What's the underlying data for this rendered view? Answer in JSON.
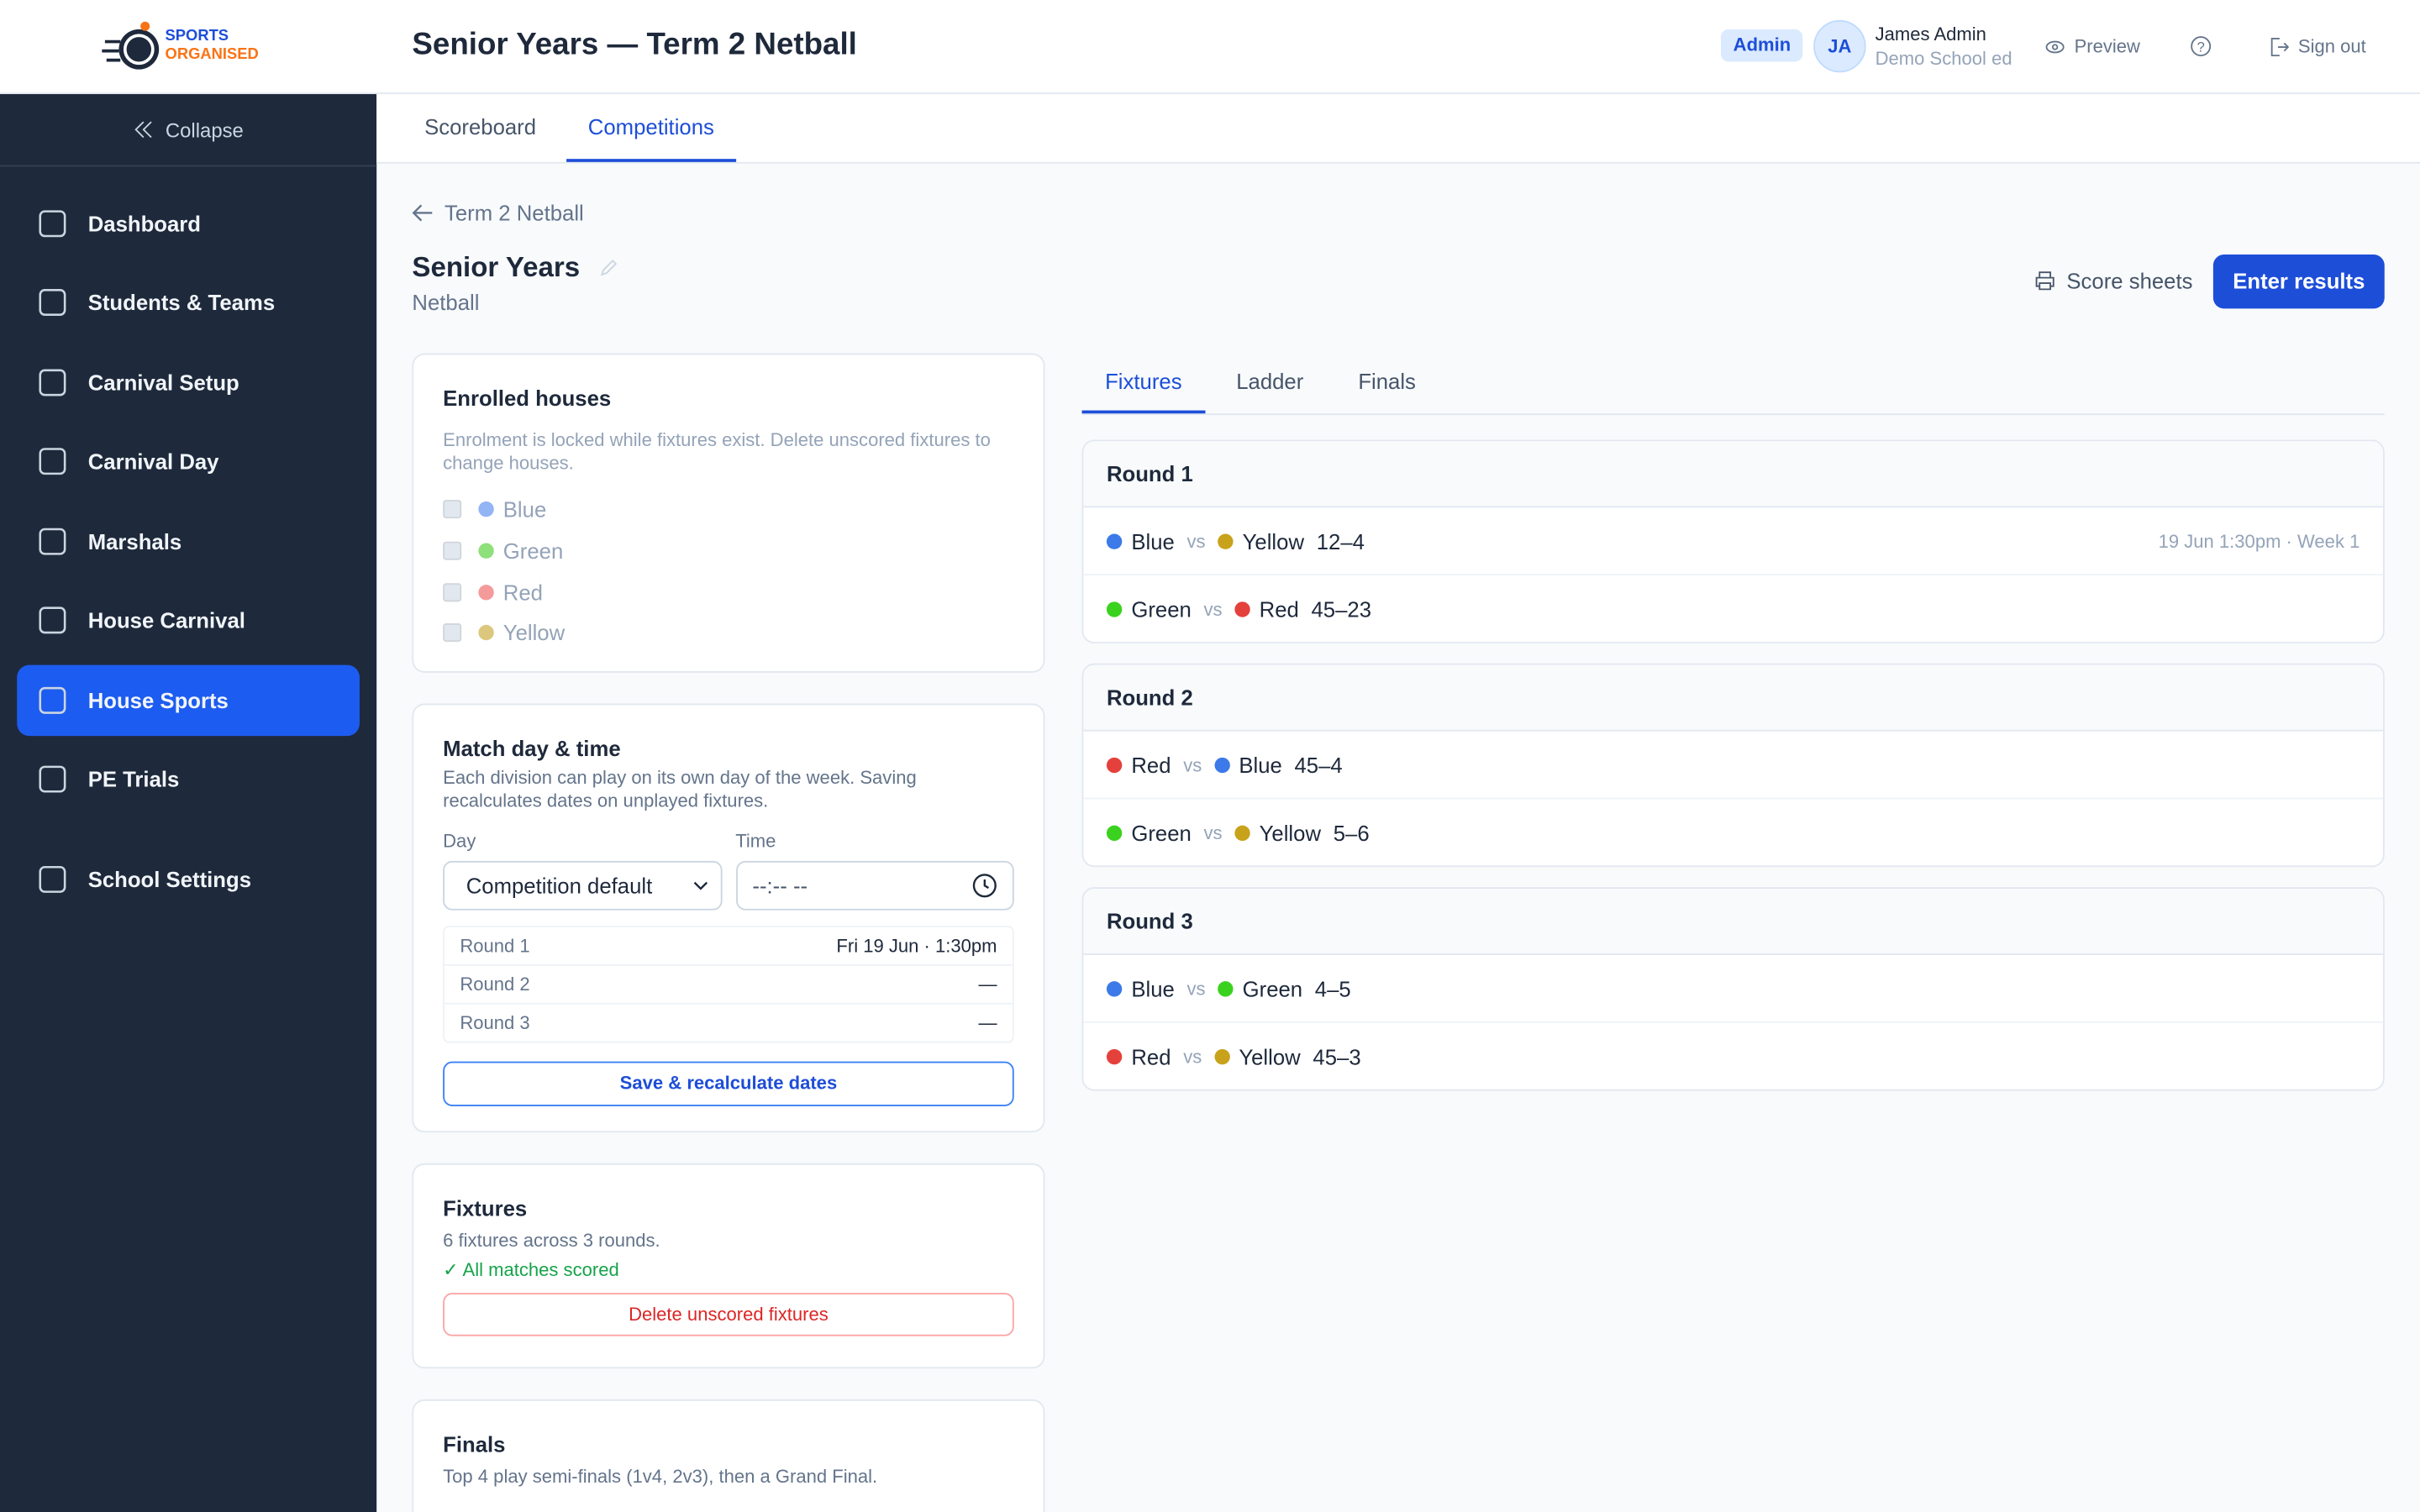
{
  "header": {
    "logo_line1": "SPORTS",
    "logo_line2": "ORGANISED",
    "title": "Senior Years — Term 2 Netball",
    "role": "Admin",
    "initials": "JA",
    "user_name": "James Admin",
    "school": "Demo School ed",
    "preview": "Preview",
    "sign_out": "Sign out"
  },
  "sidebar": {
    "collapse": "Collapse",
    "items": [
      "Dashboard",
      "Students & Teams",
      "Carnival Setup",
      "Carnival Day",
      "Marshals",
      "House Carnival",
      "House Sports",
      "PE Trials",
      "School Settings"
    ],
    "active": 6
  },
  "tabs": [
    "Scoreboard",
    "Competitions"
  ],
  "active_tab": 1,
  "page": {
    "breadcrumb": "Term 2 Netball",
    "heading": "Senior Years",
    "sport": "Netball",
    "score_sheets": "Score sheets",
    "enter_results": "Enter results"
  },
  "enrolled": {
    "title": "Enrolled houses",
    "note": "Enrolment is locked while fixtures exist. Delete unscored fixtures to change houses.",
    "houses": [
      {
        "name": "Blue",
        "color": "#93b4f5"
      },
      {
        "name": "Green",
        "color": "#8ee07a"
      },
      {
        "name": "Red",
        "color": "#f59a9a"
      },
      {
        "name": "Yellow",
        "color": "#dcc77e"
      }
    ]
  },
  "match_time": {
    "title": "Match day & time",
    "description": "Each division can play on its own day of the week. Saving recalculates dates on unplayed fixtures.",
    "day_label": "Day",
    "day_value": "Competition default",
    "time_label": "Time",
    "time_placeholder": "--:-- --",
    "rounds": [
      {
        "label": "Round 1",
        "value": "Fri 19 Jun · 1:30pm"
      },
      {
        "label": "Round 2",
        "value": "—"
      },
      {
        "label": "Round 3",
        "value": "—"
      }
    ],
    "save_button": "Save & recalculate dates"
  },
  "fixtures_card": {
    "title": "Fixtures",
    "summary": "6 fixtures across 3 rounds.",
    "status": "✓ All matches scored",
    "delete_button": "Delete unscored fixtures"
  },
  "finals_card": {
    "title": "Finals",
    "description": "Top 4 play semi-finals (1v4, 2v3), then a Grand Final."
  },
  "sub_tabs": [
    "Fixtures",
    "Ladder",
    "Finals"
  ],
  "active_sub_tab": 0,
  "vs": "vs",
  "rounds": [
    {
      "title": "Round 1",
      "matches": [
        {
          "home": "Blue",
          "home_color": "#3b7ae8",
          "away": "Yellow",
          "away_color": "#c9a21c",
          "score": "12–4",
          "meta": "19 Jun 1:30pm · Week 1"
        },
        {
          "home": "Green",
          "home_color": "#3bd21f",
          "away": "Red",
          "away_color": "#e5413c",
          "score": "45–23"
        }
      ]
    },
    {
      "title": "Round 2",
      "matches": [
        {
          "home": "Red",
          "home_color": "#e5413c",
          "away": "Blue",
          "away_color": "#3b7ae8",
          "score": "45–4"
        },
        {
          "home": "Green",
          "home_color": "#3bd21f",
          "away": "Yellow",
          "away_color": "#c9a21c",
          "score": "5–6"
        }
      ]
    },
    {
      "title": "Round 3",
      "matches": [
        {
          "home": "Blue",
          "home_color": "#3b7ae8",
          "away": "Green",
          "away_color": "#3bd21f",
          "score": "4–5"
        },
        {
          "home": "Red",
          "home_color": "#e5413c",
          "away": "Yellow",
          "away_color": "#c9a21c",
          "score": "45–3"
        }
      ]
    }
  ]
}
